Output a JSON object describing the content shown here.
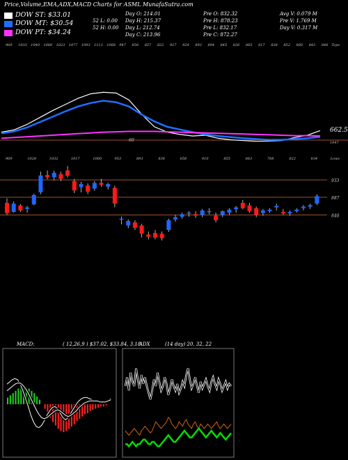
{
  "title": "Price,Volume,EMA,ADX,MACD Charts for ASML  MunafaSutra.com",
  "legend": [
    {
      "label": "DOW ST: $33.01",
      "color": "#ffffff"
    },
    {
      "label": "DOW MT: $30.54",
      "color": "#1e6fff"
    },
    {
      "label": "DOW PT: $34.24",
      "color": "#ff33ff"
    }
  ],
  "stats": [
    [
      "Day O: 214.01",
      "Day H: 215.37",
      "Day L: 212.74",
      "Day C: 213.96"
    ],
    [
      "52 L: 0.00",
      "52 H: 0.00"
    ],
    [
      "Pre O: 832.32",
      "Pre H: 878.23",
      "Pre L: 832.17",
      "Pre C: 872.27"
    ],
    [
      "Avg V: 0.079 M",
      "Pre V: 1.769 M",
      "Day V: 0.317 M"
    ]
  ],
  "colors": {
    "up": "#1e66ff",
    "down": "#ff1a1a",
    "ema_st": "#ffffff",
    "ema_mt": "#1e6fff",
    "ema_pt": "#ff33ff",
    "ema_lt": "#cc6633",
    "grid": "#a0522d"
  },
  "ema_panel": {
    "top_labels": [
      "969",
      "1033",
      "1040",
      "1060",
      "1023",
      "1077",
      "1093",
      "1113",
      "1068",
      "947",
      "858",
      "857",
      "822",
      "927",
      "924",
      "893",
      "894",
      "845",
      "826",
      "865",
      "817",
      "838",
      "852",
      "860",
      "843",
      "846"
    ],
    "bottom_labels": [
      "60"
    ],
    "corner_label": "Tops",
    "price_label": "662.52",
    "bottom_right_label": "1047"
  },
  "candle_panel": {
    "top_labels": [
      "969",
      "1028",
      "1032",
      "1017",
      "1060",
      "953",
      "893",
      "836",
      "858",
      "910",
      "855",
      "863",
      "788",
      "822",
      "834"
    ],
    "corner_label": "Lows",
    "levels": [
      {
        "label": "933",
        "value": 933
      },
      {
        "label": "887",
        "value": 887
      },
      {
        "label": "840",
        "value": 840
      }
    ]
  },
  "macd": {
    "label": "MACD:",
    "params": "( 12,26,9 ) $37.02, $33.84, 3.18"
  },
  "adx": {
    "label": "ADX",
    "params": "(14 day) 20, 32, 22"
  },
  "chart_data": [
    {
      "type": "line",
      "title": "Price,Volume,EMA,ADX,MACD Charts for ASML",
      "series": [
        {
          "name": "DOW ST",
          "values": [
            858,
            864,
            878,
            896,
            914,
            930,
            946,
            958,
            962,
            960,
            942,
            905,
            872,
            858,
            852,
            848,
            850,
            842,
            838,
            836,
            834,
            835,
            836,
            844,
            850,
            862
          ]
        },
        {
          "name": "DOW MT",
          "values": [
            855,
            860,
            870,
            884,
            898,
            912,
            925,
            934,
            940,
            936,
            925,
            904,
            886,
            872,
            865,
            858,
            852,
            848,
            845,
            842,
            840,
            838,
            838,
            840,
            842,
            846
          ]
        },
        {
          "name": "DOW PT",
          "values": [
            842,
            844,
            846,
            848,
            850,
            852,
            854,
            856,
            858,
            859,
            860,
            860,
            860,
            859,
            858,
            857,
            856,
            855,
            854,
            853,
            852,
            851,
            850,
            849,
            849,
            848
          ]
        }
      ]
    },
    {
      "type": "bar",
      "title": "Candles",
      "ohlc": [
        [
          872,
          884,
          840,
          845,
          "down"
        ],
        [
          848,
          876,
          846,
          870,
          "up"
        ],
        [
          865,
          869,
          848,
          852,
          "down"
        ],
        [
          856,
          864,
          846,
          860,
          "up"
        ],
        [
          868,
          896,
          866,
          893,
          "up"
        ],
        [
          900,
          955,
          895,
          945,
          "up"
        ],
        [
          946,
          958,
          935,
          940,
          "down"
        ],
        [
          940,
          958,
          932,
          952,
          "up"
        ],
        [
          948,
          955,
          930,
          936,
          "down"
        ],
        [
          958,
          970,
          940,
          944,
          "down"
        ],
        [
          930,
          936,
          898,
          905,
          "down"
        ],
        [
          914,
          928,
          900,
          922,
          "up"
        ],
        [
          918,
          924,
          895,
          902,
          "down"
        ],
        [
          910,
          930,
          904,
          925,
          "up"
        ],
        [
          925,
          936,
          915,
          920,
          "down"
        ],
        [
          922,
          925,
          908,
          915,
          "up"
        ],
        [
          912,
          918,
          860,
          870,
          "down"
        ],
        [
          828,
          836,
          815,
          830,
          "up"
        ],
        [
          824,
          828,
          805,
          812,
          "up"
        ],
        [
          820,
          826,
          800,
          806,
          "down"
        ],
        [
          812,
          816,
          780,
          790,
          "down"
        ],
        [
          788,
          796,
          775,
          782,
          "down"
        ],
        [
          792,
          800,
          775,
          780,
          "down"
        ],
        [
          790,
          796,
          772,
          778,
          "down"
        ],
        [
          800,
          830,
          795,
          826,
          "up"
        ],
        [
          828,
          840,
          822,
          834,
          "up"
        ],
        [
          835,
          846,
          830,
          842,
          "up"
        ],
        [
          844,
          850,
          835,
          846,
          "up"
        ],
        [
          842,
          850,
          832,
          838,
          "down"
        ],
        [
          840,
          856,
          834,
          852,
          "up"
        ],
        [
          850,
          858,
          842,
          848,
          "up"
        ],
        [
          838,
          846,
          820,
          826,
          "down"
        ],
        [
          840,
          852,
          834,
          850,
          "up"
        ],
        [
          846,
          858,
          840,
          854,
          "up"
        ],
        [
          855,
          864,
          846,
          860,
          "up"
        ],
        [
          872,
          880,
          855,
          858,
          "down"
        ],
        [
          865,
          872,
          846,
          850,
          "down"
        ],
        [
          858,
          862,
          834,
          840,
          "down"
        ],
        [
          845,
          856,
          838,
          852,
          "up"
        ],
        [
          850,
          858,
          846,
          854,
          "up"
        ],
        [
          860,
          870,
          852,
          864,
          "up"
        ],
        [
          848,
          856,
          840,
          844,
          "down"
        ],
        [
          844,
          852,
          838,
          848,
          "up"
        ],
        [
          850,
          858,
          846,
          854,
          "up"
        ],
        [
          858,
          866,
          852,
          862,
          "up"
        ],
        [
          862,
          870,
          856,
          866,
          "up"
        ],
        [
          870,
          895,
          866,
          890,
          "up"
        ]
      ]
    },
    {
      "type": "bar",
      "title": "MACD ( 12,26,9 )",
      "values": [
        6,
        8,
        10,
        12,
        14,
        15,
        16,
        15,
        14,
        12,
        10,
        7,
        4,
        0,
        -4,
        -8,
        -12,
        -16,
        -19,
        -22,
        -24,
        -25,
        -24,
        -22,
        -20,
        -18,
        -15,
        -13,
        -11,
        -9,
        -8,
        -6,
        -5,
        -4,
        -3,
        -2,
        -2,
        -1,
        0,
        0
      ],
      "series": [
        {
          "name": "MACD",
          "values": [
            18,
            20,
            22,
            23,
            22,
            18,
            12,
            5,
            -2,
            -10,
            -16,
            -20,
            -21,
            -19,
            -15,
            -10,
            -6,
            -3,
            -2,
            -4,
            -8,
            -12,
            -14,
            -12,
            -8,
            -4,
            0,
            3,
            5,
            6,
            6,
            5,
            4,
            3,
            3,
            2,
            2,
            3,
            4,
            5
          ]
        },
        {
          "name": "Signal",
          "values": [
            12,
            14,
            16,
            18,
            19,
            19,
            17,
            14,
            10,
            5,
            0,
            -5,
            -9,
            -12,
            -13,
            -12,
            -10,
            -8,
            -6,
            -5,
            -6,
            -8,
            -10,
            -11,
            -10,
            -8,
            -6,
            -3,
            -1,
            1,
            2,
            3,
            3,
            3,
            3,
            2,
            2,
            2,
            3,
            4
          ]
        }
      ]
    },
    {
      "type": "line",
      "title": "ADX (14 day) 20, 32, 22",
      "series": [
        {
          "name": "+DI",
          "values": [
            30,
            34,
            28,
            36,
            32,
            30,
            38,
            33,
            29,
            35,
            31,
            34,
            30,
            27,
            24,
            28,
            33,
            30,
            36,
            32,
            28,
            30,
            34,
            31,
            26,
            29,
            33,
            30,
            28,
            31,
            27,
            29,
            32,
            30,
            35,
            38,
            33,
            29,
            31,
            34,
            30,
            27,
            32,
            29,
            31,
            33,
            30,
            28,
            32,
            34,
            31,
            29,
            33,
            31,
            28,
            30,
            32,
            29,
            31,
            30
          ]
        },
        {
          "name": "-DI",
          "values": [
            10,
            9,
            8,
            9,
            10,
            11,
            10,
            9,
            8,
            10,
            11,
            12,
            11,
            10,
            9,
            10,
            12,
            14,
            13,
            12,
            11,
            12,
            13,
            14,
            16,
            15,
            13,
            12,
            11,
            12,
            14,
            13,
            12,
            14,
            15,
            13,
            12,
            11,
            13,
            14,
            12,
            11,
            13,
            12,
            11,
            12,
            13,
            12,
            11,
            12,
            13,
            14,
            12,
            11,
            12,
            13,
            12,
            11,
            12,
            13
          ]
        },
        {
          "name": "ADX",
          "values": [
            4,
            4,
            3,
            4,
            5,
            4,
            3,
            4,
            4,
            5,
            6,
            6,
            5,
            4,
            4,
            5,
            5,
            4,
            3,
            3,
            4,
            5,
            6,
            7,
            8,
            7,
            6,
            5,
            5,
            6,
            7,
            8,
            9,
            10,
            9,
            8,
            7,
            7,
            8,
            9,
            10,
            11,
            10,
            9,
            8,
            7,
            8,
            9,
            10,
            9,
            8,
            7,
            8,
            9,
            8,
            7,
            6,
            7,
            8,
            9
          ]
        }
      ]
    }
  ]
}
